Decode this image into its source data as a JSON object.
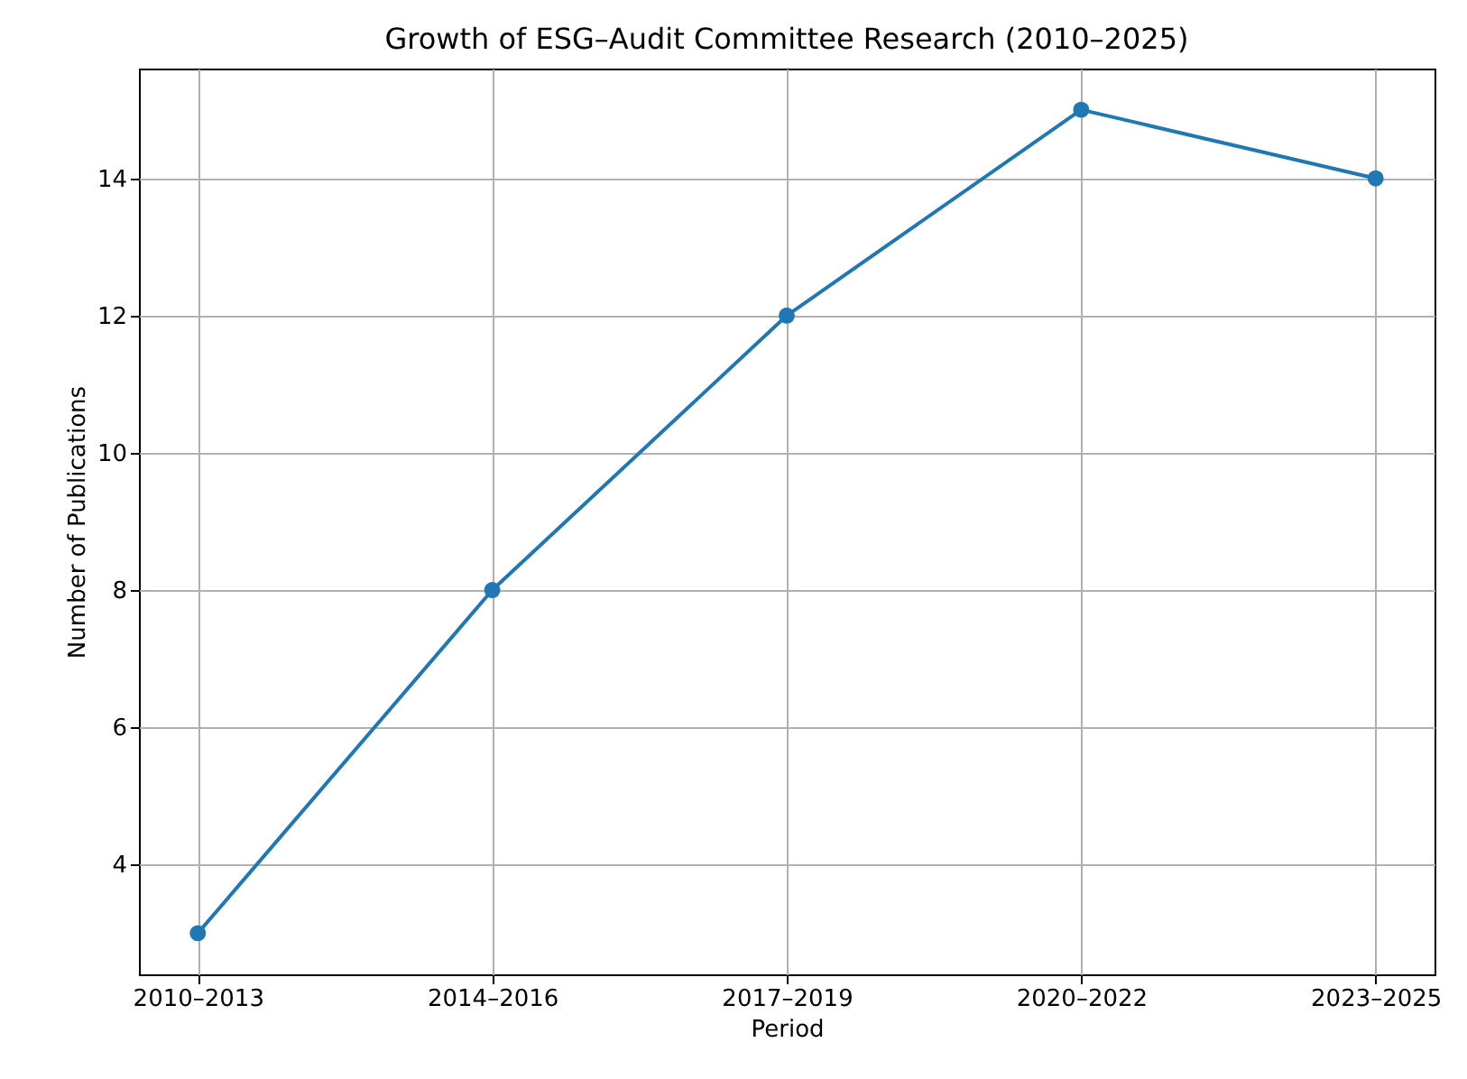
{
  "chart_data": {
    "type": "line",
    "title": "Growth of ESG–Audit Committee Research (2010–2025)",
    "xlabel": "Period",
    "ylabel": "Number of Publications",
    "categories": [
      "2010–2013",
      "2014–2016",
      "2017–2019",
      "2020–2022",
      "2023–2025"
    ],
    "series": [
      {
        "color": "#1f77b4",
        "values": [
          3,
          8,
          12,
          15,
          14
        ]
      }
    ],
    "ylim": [
      2.4,
      15.6
    ],
    "yticks": [
      4,
      6,
      8,
      10,
      12,
      14
    ],
    "grid": true,
    "marker": "circle",
    "line_style": "solid"
  }
}
